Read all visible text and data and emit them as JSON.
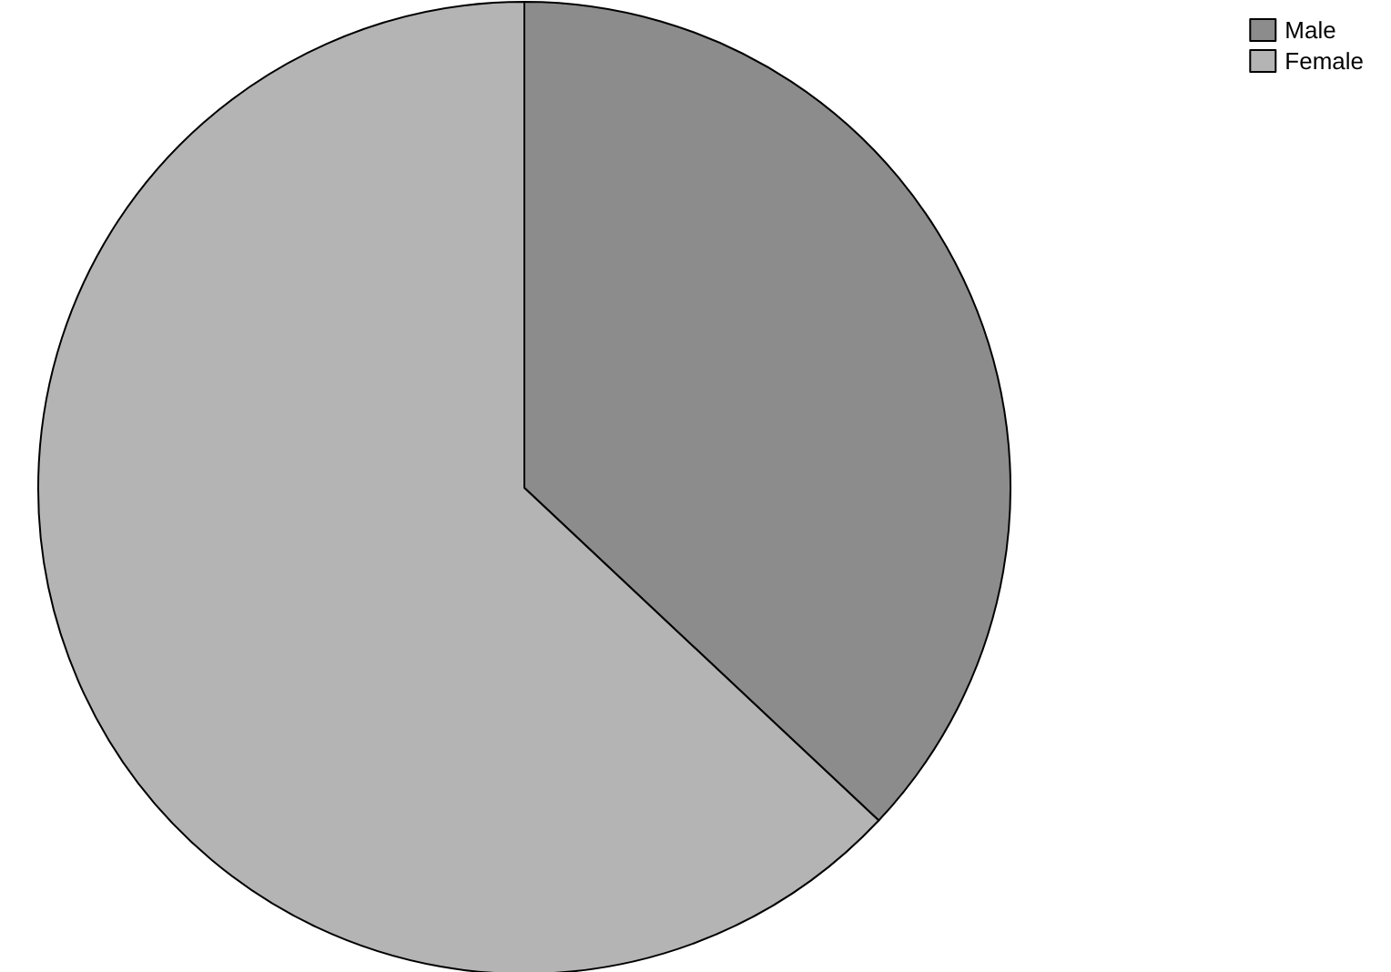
{
  "chart_data": {
    "type": "pie",
    "categories": [
      "Male",
      "Female"
    ],
    "values": [
      37,
      63
    ],
    "colors": [
      "#8c8c8c",
      "#b4b4b4"
    ],
    "legend": "top right"
  }
}
